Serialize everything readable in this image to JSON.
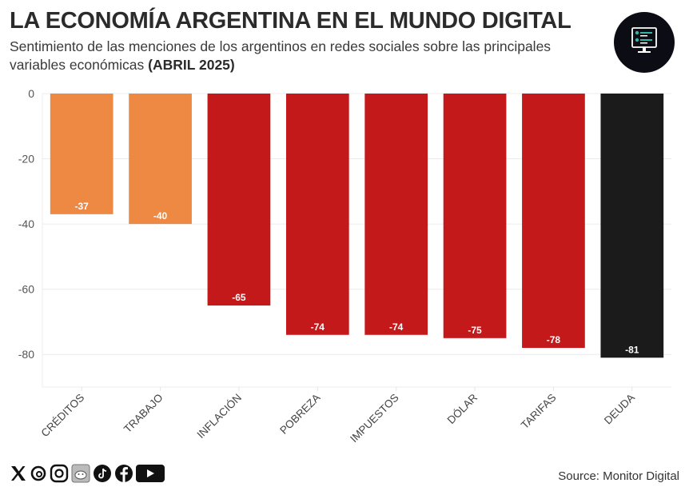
{
  "header": {
    "title": "LA ECONOMÍA ARGENTINA EN EL MUNDO DIGITAL",
    "subtitle_main": "Sentimiento de las menciones de los argentinos en redes sociales sobre las principales variables económicas ",
    "subtitle_bold": "(ABRIL 2025)",
    "logo_icon": "monitor-dashboard-icon"
  },
  "footer": {
    "source": "Source: Monitor Digital",
    "social_icons": [
      "x-icon",
      "threads-icon",
      "instagram-icon",
      "reddit-icon",
      "tiktok-icon",
      "facebook-icon",
      "youtube-icon"
    ]
  },
  "colors": {
    "orange": "#EE8944",
    "red": "#C4191B",
    "black": "#1B1B1B",
    "grid": "#ECECEC"
  },
  "chart_data": {
    "type": "bar",
    "title": "LA ECONOMÍA ARGENTINA EN EL MUNDO DIGITAL",
    "subtitle": "Sentimiento de las menciones de los argentinos en redes sociales sobre las principales variables económicas (ABRIL 2025)",
    "categories": [
      "CRÉDITOS",
      "TRABAJO",
      "INFLACIÓN",
      "POBREZA",
      "IMPUESTOS",
      "DÓLAR",
      "TARIFAS",
      "DEUDA"
    ],
    "values": [
      -37,
      -40,
      -65,
      -74,
      -74,
      -75,
      -78,
      -81
    ],
    "data_labels": [
      "-37",
      "-40",
      "-65",
      "-74",
      "-74",
      "-75",
      "-78",
      "-81"
    ],
    "bar_colors": [
      "#EE8944",
      "#EE8944",
      "#C4191B",
      "#C4191B",
      "#C4191B",
      "#C4191B",
      "#C4191B",
      "#1B1B1B"
    ],
    "xlabel": "",
    "ylabel": "",
    "ylim": [
      -90,
      0
    ],
    "yticks": [
      0,
      -20,
      -40,
      -60,
      -80
    ],
    "ytick_labels": [
      "0",
      "-20",
      "-40",
      "-60",
      "-80"
    ],
    "grid": true,
    "legend": "none",
    "source": "Source: Monitor Digital"
  }
}
